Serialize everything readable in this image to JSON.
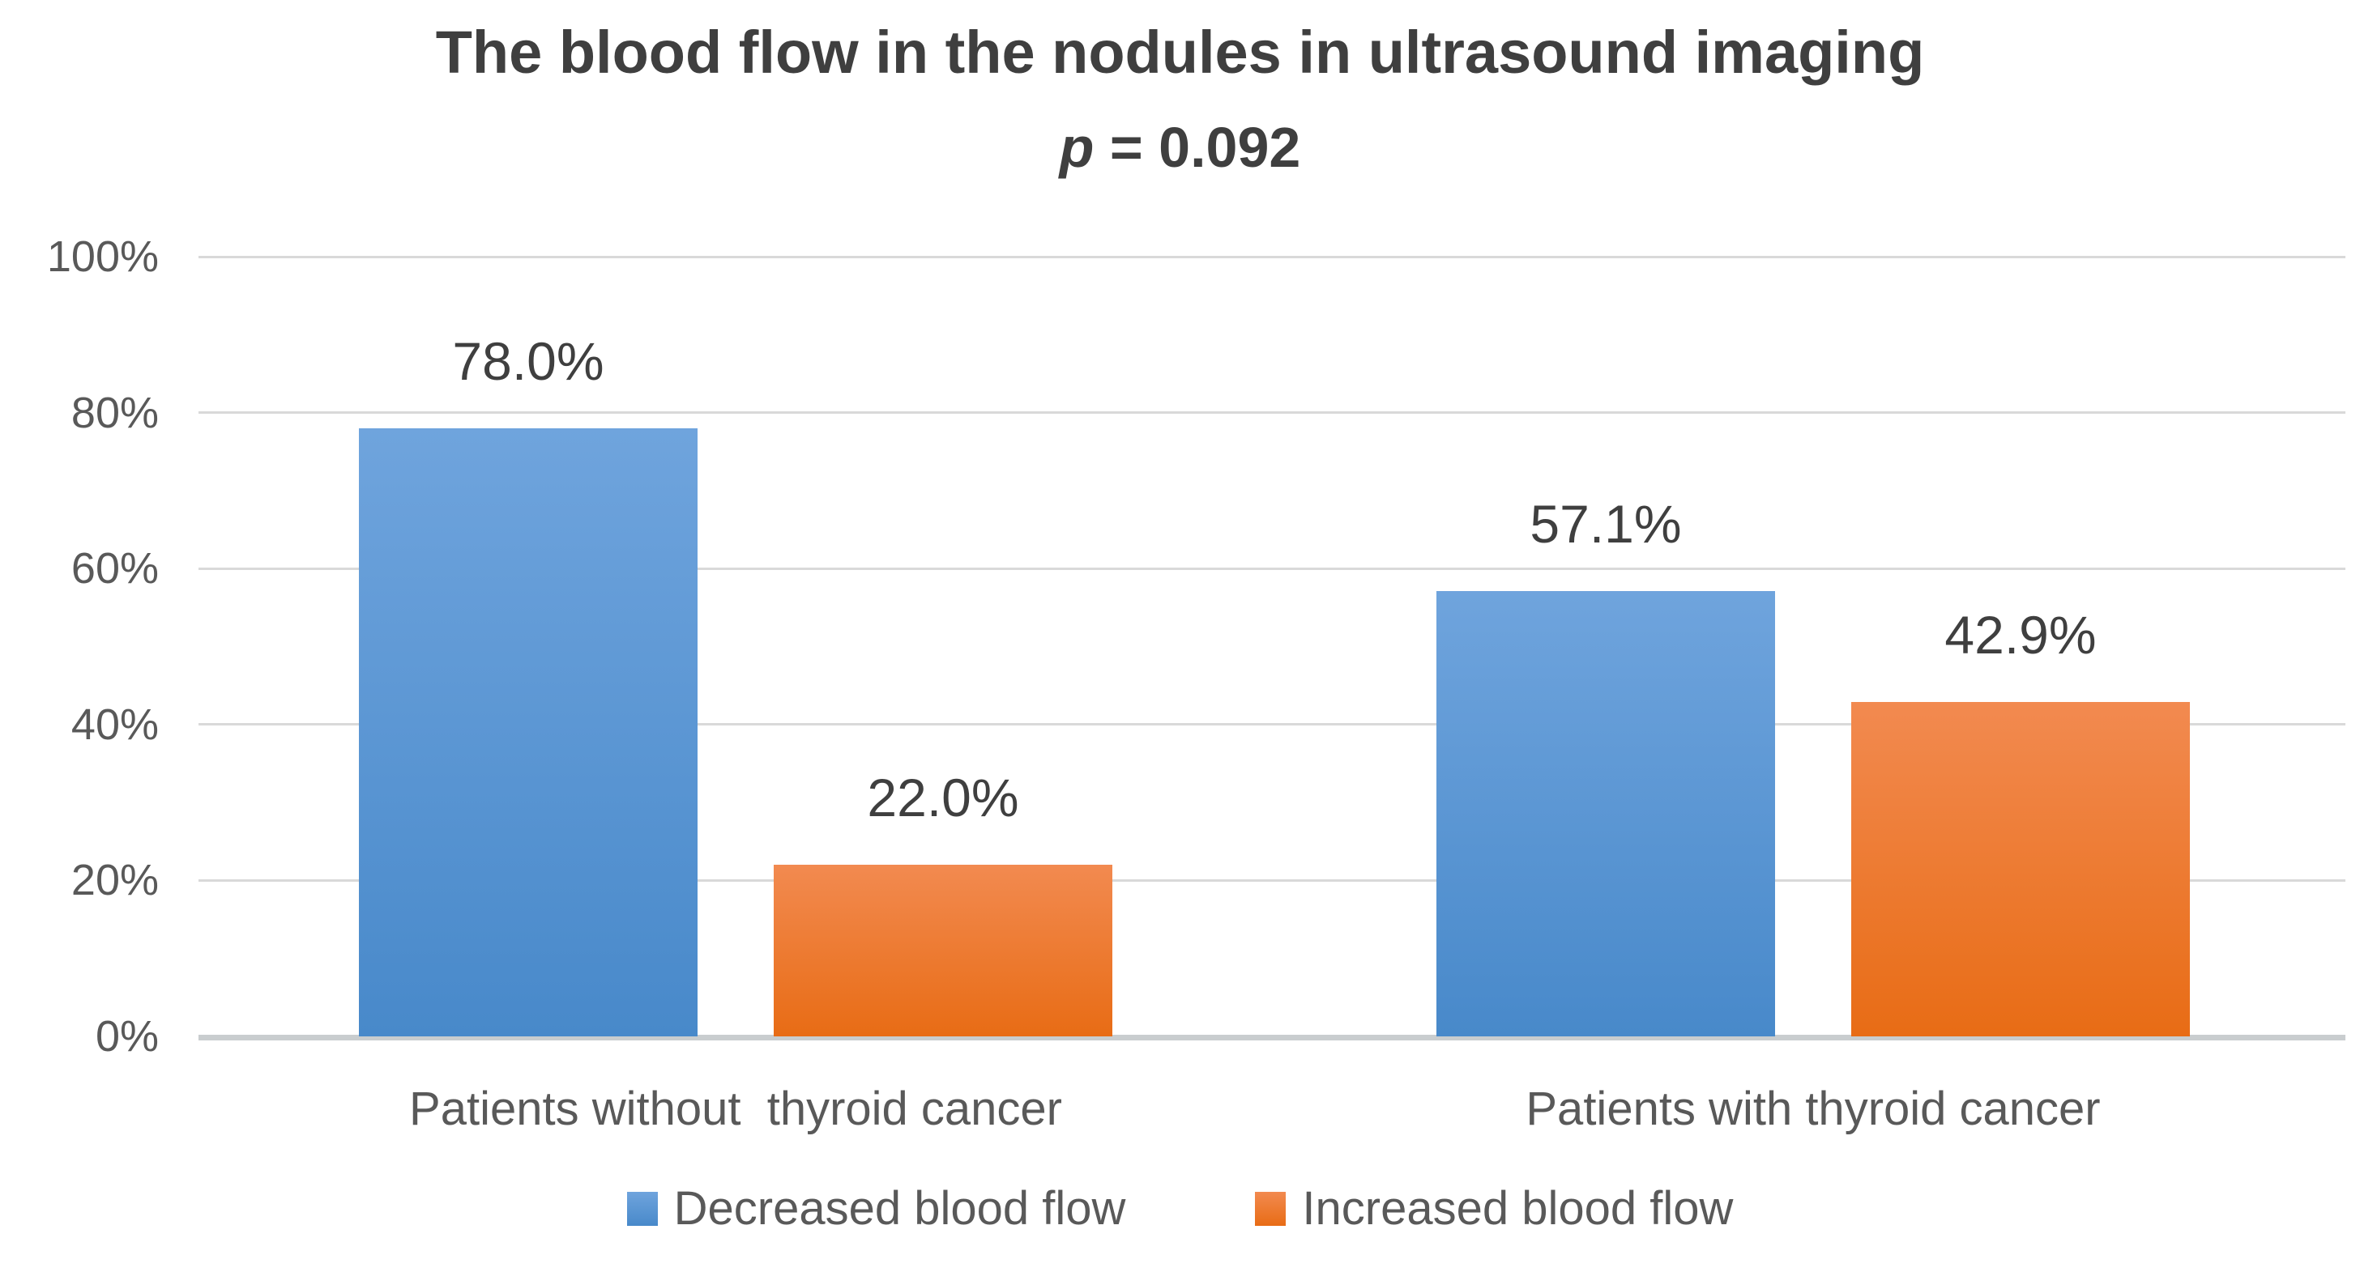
{
  "chart": {
    "title": "The blood flow in the nodules in ultrasound imaging",
    "subtitle_italic": "p",
    "subtitle_rest": " = 0.092"
  },
  "chart_data": {
    "type": "bar",
    "title": "The blood flow in the nodules in ultrasound imaging",
    "subtitle": "p = 0.092",
    "categories": [
      "Patients without  thyroid cancer",
      "Patients with thyroid cancer"
    ],
    "series": [
      {
        "name": "Decreased blood flow",
        "values": [
          78.0,
          57.1
        ],
        "labels": [
          "78.0%",
          "57.1%"
        ],
        "color_top": "#6FA4DD",
        "color_bottom": "#4889CA"
      },
      {
        "name": "Increased blood flow",
        "values": [
          22.0,
          42.9
        ],
        "labels": [
          "22.0%",
          "42.9%"
        ],
        "color_top": "#F28A50",
        "color_bottom": "#E86C15"
      }
    ],
    "y_axis": {
      "min": 0,
      "max": 100,
      "tick_values": [
        0,
        20,
        40,
        60,
        80,
        100
      ],
      "tick_labels": [
        "0%",
        "20%",
        "40%",
        "60%",
        "80%",
        "100%"
      ],
      "grid": true
    },
    "legend_position": "bottom"
  },
  "colors": {
    "grid": "#D9D9D9",
    "axis": "#C9CDCF",
    "title_text": "#3F3F3F",
    "tick_text": "#595959",
    "data_label_text": "#3F3F3F"
  }
}
